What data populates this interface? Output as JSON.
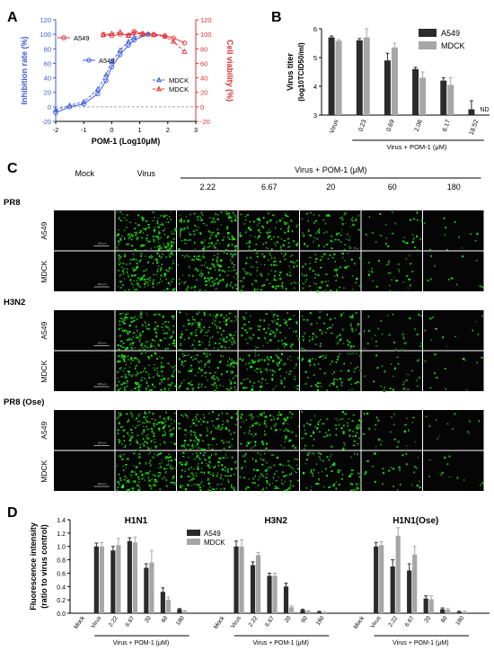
{
  "panels": {
    "a": "A",
    "b": "B",
    "c": "C",
    "d": "D"
  },
  "chart_data": [
    {
      "panel": "A",
      "type": "line",
      "xlabel": "POM-1 (Log10μM)",
      "ylabel_left": "Inhibition rate (%)",
      "ylabel_right": "Cell viability (%)",
      "xlim": [
        -2,
        3
      ],
      "xticks": [
        "-2",
        "-1",
        "0",
        "1",
        "2",
        "3"
      ],
      "ylim": [
        -20,
        120
      ],
      "yticks": [
        "-20",
        "0",
        "20",
        "40",
        "60",
        "80",
        "100",
        "120"
      ],
      "legend_inhibition": [
        "A549",
        "MDCK"
      ],
      "legend_viability": [
        "A549",
        "MDCK"
      ],
      "series": [
        {
          "name": "A549",
          "kind": "inhibition",
          "color": "#3b5bdb",
          "x": [
            -2,
            -1.5,
            -1,
            -0.5,
            -0.2,
            0,
            0.3,
            0.6,
            0.8,
            1.3
          ],
          "y": [
            -8,
            0,
            4,
            18,
            36,
            55,
            72,
            85,
            92,
            100
          ]
        },
        {
          "name": "MDCK",
          "kind": "inhibition",
          "color": "#3b5bdb",
          "x": [
            -2,
            -1.5,
            -1,
            -0.5,
            -0.2,
            0,
            0.3,
            0.6,
            0.8,
            1.3
          ],
          "y": [
            -4,
            2,
            7,
            24,
            44,
            62,
            78,
            90,
            96,
            100
          ]
        },
        {
          "name": "A549",
          "kind": "viability",
          "color": "#e03131",
          "x": [
            -0.3,
            0,
            0.3,
            0.6,
            0.8,
            1.1,
            1.5,
            1.9,
            2.2,
            2.6
          ],
          "y": [
            100,
            98,
            100,
            99,
            104,
            101,
            100,
            98,
            95,
            88
          ]
        },
        {
          "name": "MDCK",
          "kind": "viability",
          "color": "#e03131",
          "x": [
            -0.3,
            0,
            0.3,
            0.6,
            0.8,
            1.1,
            1.5,
            1.9,
            2.2,
            2.6
          ],
          "y": [
            99,
            101,
            103,
            98,
            102,
            100,
            99,
            97,
            90,
            76
          ]
        }
      ]
    },
    {
      "panel": "B",
      "type": "bar",
      "ylabel": "Virus titer",
      "ylabel_sub": "(log10TCID50/ml)",
      "ylim": [
        3,
        6
      ],
      "yticks": [
        "3",
        "4",
        "5",
        "6"
      ],
      "categories": [
        "Virus",
        "0.23",
        "0.69",
        "2.06",
        "6.17",
        "18.52"
      ],
      "group_label": "Virus + POM-1 (μM)",
      "nd_label": "ND",
      "series": [
        {
          "name": "A549",
          "color": "#2b2b2b",
          "values": [
            5.7,
            5.6,
            4.9,
            4.6,
            4.2,
            3.2
          ],
          "errors": [
            0.05,
            0.06,
            0.25,
            0.06,
            0.1,
            0.3
          ]
        },
        {
          "name": "MDCK",
          "color": "#a6a6a6",
          "values": [
            5.58,
            5.7,
            5.35,
            4.3,
            4.05,
            null
          ],
          "errors": [
            0.04,
            0.3,
            0.15,
            0.2,
            0.25,
            0
          ]
        }
      ]
    },
    {
      "panel": "D",
      "type": "bar",
      "ylabel": "Fluorescence intensity",
      "ylabel_sub": "(ratio to virus control)",
      "ylim": [
        0,
        1.4
      ],
      "yticks": [
        "0.0",
        "0.2",
        "0.4",
        "0.6",
        "0.8",
        "1.0",
        "1.2",
        "1.4"
      ],
      "categories": [
        "Mock",
        "Virus",
        "2.22",
        "6.67",
        "20",
        "60",
        "180"
      ],
      "group_label": "Virus + POM-1 (μM)",
      "legend": [
        "A549",
        "MDCK"
      ],
      "groups": [
        {
          "title": "H1N1",
          "a549": [
            0,
            1.0,
            0.94,
            1.08,
            0.68,
            0.32,
            0.06
          ],
          "mdck": [
            0,
            1.0,
            1.02,
            1.06,
            0.76,
            0.2,
            0.03
          ],
          "a549_err": [
            0,
            0.05,
            0.06,
            0.05,
            0.06,
            0.06,
            0.01
          ],
          "mdck_err": [
            0,
            0.06,
            0.1,
            0.08,
            0.18,
            0.04,
            0.01
          ]
        },
        {
          "title": "H3N2",
          "a549": [
            0,
            1.0,
            0.72,
            0.56,
            0.4,
            0.05,
            0.02
          ],
          "mdck": [
            0,
            1.0,
            0.87,
            0.56,
            0.09,
            0.03,
            0.01
          ],
          "a549_err": [
            0,
            0.08,
            0.05,
            0.04,
            0.05,
            0.01,
            0.01
          ],
          "mdck_err": [
            0,
            0.1,
            0.04,
            0.04,
            0.02,
            0.01,
            0.01
          ]
        },
        {
          "title": "H1N1(Ose)",
          "a549": [
            0,
            1.0,
            0.7,
            0.64,
            0.22,
            0.06,
            0.02
          ],
          "mdck": [
            0,
            1.02,
            1.16,
            0.88,
            0.21,
            0.05,
            0.02
          ],
          "a549_err": [
            0,
            0.06,
            0.1,
            0.1,
            0.04,
            0.02,
            0.01
          ],
          "mdck_err": [
            0,
            0.05,
            0.12,
            0.12,
            0.05,
            0.02,
            0.01
          ]
        }
      ]
    }
  ],
  "panel_c": {
    "col_headers": [
      "Mock",
      "Virus"
    ],
    "virus_pom_label": "Virus + POM-1 (μM)",
    "concentrations": [
      "2.22",
      "6.67",
      "20",
      "60",
      "180"
    ],
    "groups": [
      {
        "name": "PR8",
        "rows": [
          "A549",
          "MDCK"
        ]
      },
      {
        "name": "H3N2",
        "rows": [
          "A549",
          "MDCK"
        ]
      },
      {
        "name": "PR8 (Ose)",
        "rows": [
          "A549",
          "MDCK"
        ]
      }
    ],
    "scale_bar": "100 μm",
    "density": [
      0.0,
      1.0,
      0.85,
      0.65,
      0.5,
      0.2,
      0.08
    ]
  }
}
